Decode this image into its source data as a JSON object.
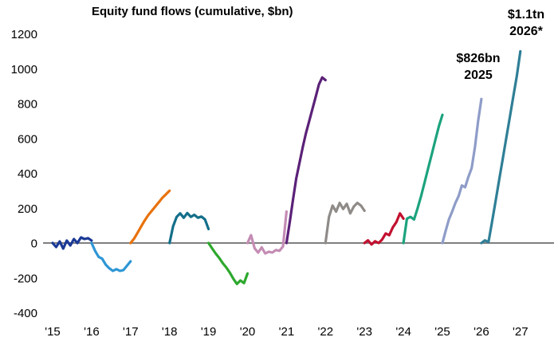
{
  "chart_data": {
    "type": "line",
    "title": "Equity fund flows (cumulative, $bn)",
    "xlabel": "",
    "ylabel": "",
    "ylim": [
      -400,
      1200
    ],
    "yticks": [
      1200,
      1000,
      800,
      600,
      400,
      200,
      0,
      -200,
      -400
    ],
    "x_axis_years": [
      "'15",
      "'16",
      "'17",
      "'18",
      "'19",
      "'20",
      "'21",
      "'22",
      "'23",
      "'24",
      "'25",
      "'26",
      "'27"
    ],
    "grid": "zero-line-only",
    "zero_line_color": "#7f7f7f",
    "text_color": "#000000",
    "legend": "none",
    "annotations": {
      "y2026": {
        "line1": "$1.1tn",
        "line2": "2026*",
        "applies_to_series": "2026",
        "value_bn": 1100
      },
      "y2025": {
        "line1": "$826bn",
        "line2": "2025",
        "applies_to_series": "2025",
        "value_bn": 826
      }
    },
    "series": [
      {
        "name": "2015",
        "color": "#1b3a96",
        "values": [
          0,
          -23,
          9,
          -32,
          14,
          -14,
          23,
          0,
          32,
          23,
          28,
          14
        ]
      },
      {
        "name": "2016",
        "color": "#2e96d5",
        "values": [
          0,
          -45,
          -80,
          -90,
          -125,
          -145,
          -160,
          -150,
          -160,
          -155,
          -130,
          -105
        ]
      },
      {
        "name": "2017",
        "color": "#e8720c",
        "values": [
          0,
          25,
          60,
          95,
          130,
          160,
          185,
          210,
          235,
          260,
          280,
          300
        ]
      },
      {
        "name": "2018",
        "color": "#136f8a",
        "values": [
          0,
          95,
          150,
          170,
          145,
          172,
          150,
          162,
          145,
          152,
          135,
          80
        ]
      },
      {
        "name": "2019",
        "color": "#2da82d",
        "values": [
          0,
          -30,
          -60,
          -85,
          -115,
          -140,
          -170,
          -205,
          -235,
          -215,
          -230,
          -175
        ]
      },
      {
        "name": "2020",
        "color": "#c48cb4",
        "values": [
          0,
          45,
          -30,
          -55,
          -25,
          -60,
          -50,
          -55,
          -40,
          -45,
          -20,
          180
        ]
      },
      {
        "name": "2021",
        "color": "#5b2178",
        "values": [
          0,
          120,
          250,
          370,
          460,
          550,
          630,
          700,
          770,
          840,
          910,
          950,
          935
        ]
      },
      {
        "name": "2022",
        "color": "#8f8b88",
        "values": [
          0,
          150,
          215,
          180,
          230,
          195,
          225,
          170,
          210,
          230,
          215,
          185
        ]
      },
      {
        "name": "2023",
        "color": "#c21130",
        "values": [
          0,
          15,
          -8,
          10,
          0,
          20,
          55,
          45,
          90,
          120,
          170,
          140
        ]
      },
      {
        "name": "2024",
        "color": "#1ca37e",
        "values": [
          0,
          140,
          150,
          135,
          200,
          270,
          350,
          430,
          510,
          590,
          670,
          735
        ]
      },
      {
        "name": "2025",
        "color": "#8e9cc8",
        "values": [
          0,
          70,
          135,
          180,
          230,
          270,
          330,
          320,
          380,
          430,
          550,
          700,
          826
        ]
      },
      {
        "name": "2026",
        "color": "#2f7f96",
        "values": [
          0,
          15,
          5,
          120,
          240,
          360,
          480,
          600,
          720,
          840,
          960,
          1100
        ]
      }
    ]
  }
}
